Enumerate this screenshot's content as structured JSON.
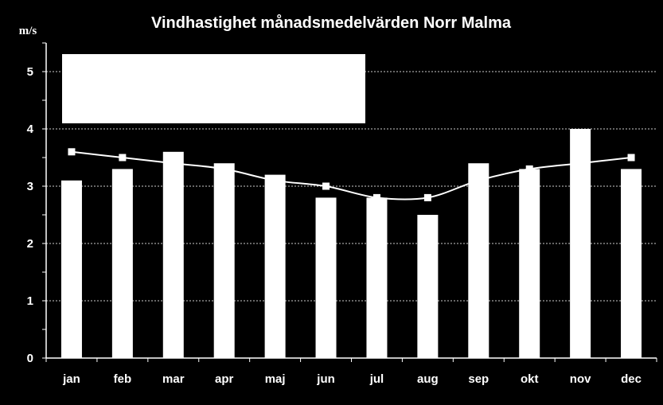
{
  "chart_data": {
    "type": "bar",
    "title": "Vindhastighet månadsmedelvärden Norr Malma",
    "ylabel": "m/s",
    "xlabel": "",
    "ylim": [
      0,
      5.5
    ],
    "yticks": [
      0,
      1,
      2,
      3,
      4,
      5
    ],
    "grid": true,
    "categories": [
      "jan",
      "feb",
      "mar",
      "apr",
      "maj",
      "jun",
      "jul",
      "aug",
      "sep",
      "okt",
      "nov",
      "dec"
    ],
    "series": [
      {
        "type": "bar",
        "values": [
          3.1,
          3.3,
          3.6,
          3.4,
          3.2,
          2.8,
          2.8,
          2.5,
          3.4,
          3.3,
          4.0,
          3.3
        ]
      },
      {
        "type": "line",
        "values": [
          3.6,
          3.5,
          3.4,
          3.3,
          3.1,
          3.0,
          2.8,
          2.8,
          3.1,
          3.3,
          3.4,
          3.5
        ]
      }
    ],
    "colors": {
      "background": "#000000",
      "bars": "#ffffff",
      "line": "#ffffff",
      "grid": "#ffffff",
      "legend_box": "#ffffff"
    }
  }
}
